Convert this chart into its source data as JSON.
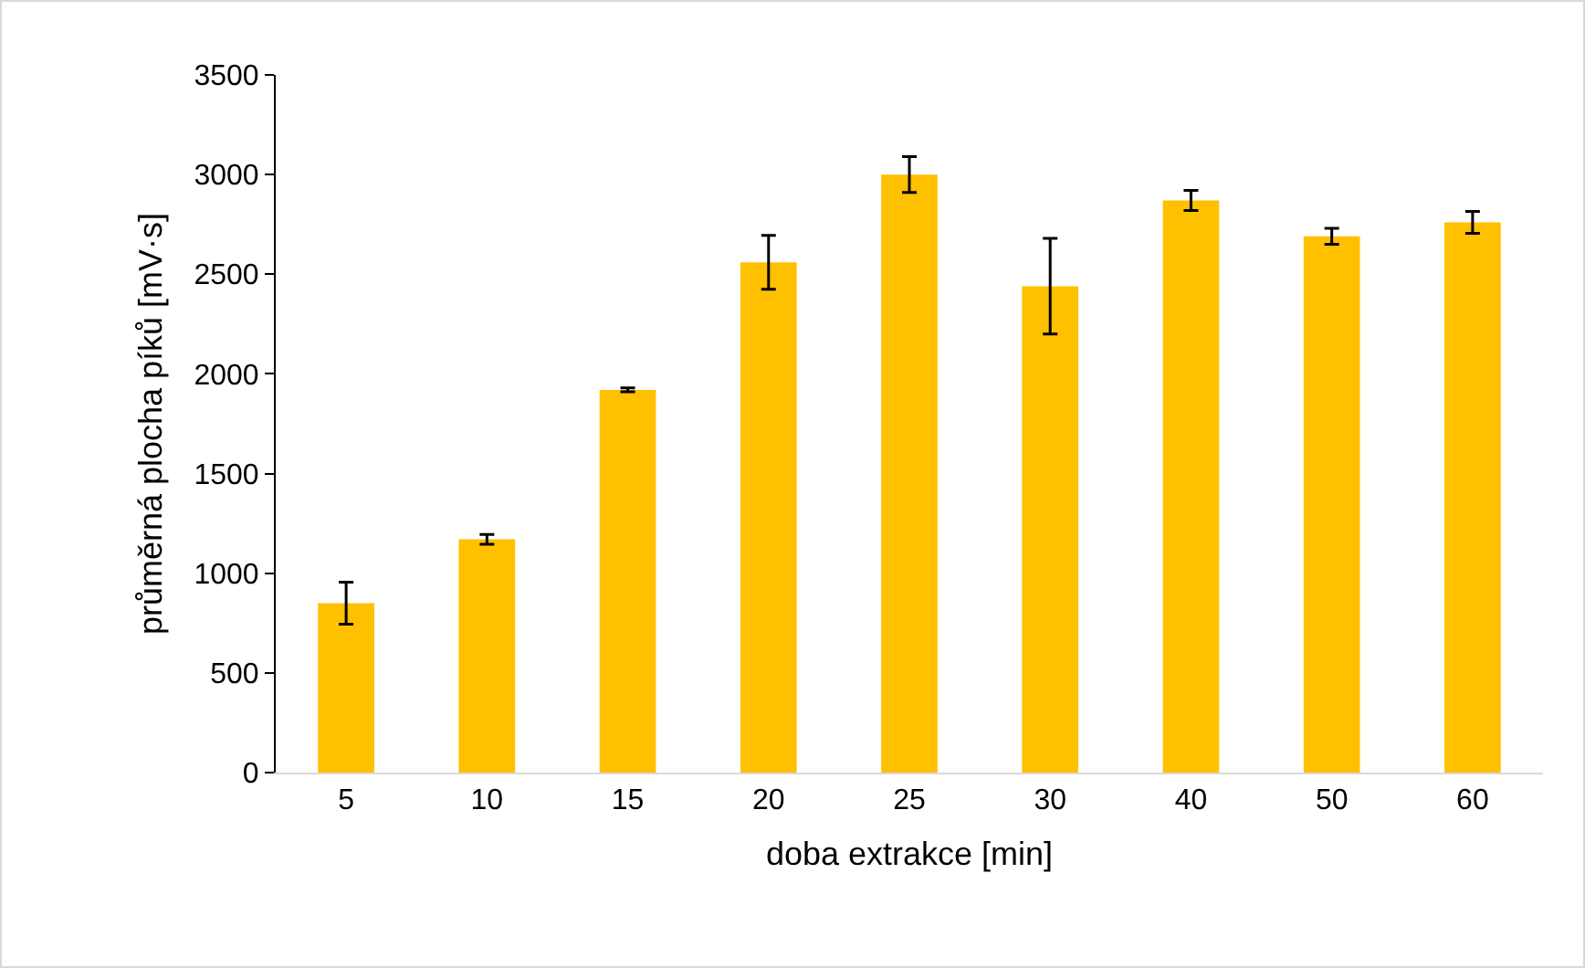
{
  "chart_data": {
    "type": "bar",
    "xlabel": "doba extrakce [min]",
    "ylabel": "průměrná plocha píků [mV·s]",
    "categories": [
      "5",
      "10",
      "15",
      "20",
      "25",
      "30",
      "40",
      "50",
      "60"
    ],
    "values": [
      850,
      1170,
      1920,
      2560,
      3000,
      2440,
      2870,
      2690,
      2760
    ],
    "errors": [
      105,
      25,
      10,
      135,
      90,
      240,
      50,
      40,
      55
    ],
    "color": "#ffc000",
    "ylim": [
      0,
      3500
    ],
    "yticks": [
      0,
      500,
      1000,
      1500,
      2000,
      2500,
      3000,
      3500
    ],
    "grid": false
  }
}
